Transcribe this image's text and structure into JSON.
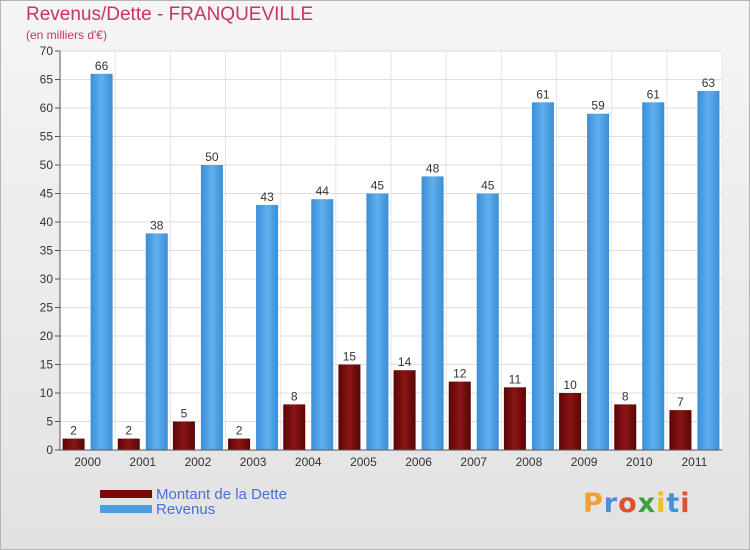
{
  "chart_data": {
    "type": "bar",
    "title": "Revenus/Dette - FRANQUEVILLE",
    "subtitle": "(en milliers d'€)",
    "categories": [
      "2000",
      "2001",
      "2002",
      "2003",
      "2004",
      "2005",
      "2006",
      "2007",
      "2008",
      "2009",
      "2010",
      "2011"
    ],
    "series": [
      {
        "name": "Montant de la Dette",
        "color": "#7a0a0a",
        "values": [
          2,
          2,
          5,
          2,
          8,
          15,
          14,
          12,
          11,
          10,
          8,
          7
        ]
      },
      {
        "name": "Revenus",
        "color": "#4d9fe0",
        "values": [
          66,
          38,
          50,
          43,
          44,
          45,
          48,
          45,
          61,
          59,
          61,
          63
        ]
      }
    ],
    "ylim": [
      0,
      70
    ],
    "yticks": [
      0,
      5,
      10,
      15,
      20,
      25,
      30,
      35,
      40,
      45,
      50,
      55,
      60,
      65,
      70
    ],
    "grid": true,
    "legend_position": "bottom-left"
  },
  "logo": {
    "text": "Proxiti",
    "colors": [
      "#f0a030",
      "#4a90d9",
      "#e05030",
      "#3aa040",
      "#f0c020",
      "#4a90d9",
      "#e05030"
    ]
  }
}
